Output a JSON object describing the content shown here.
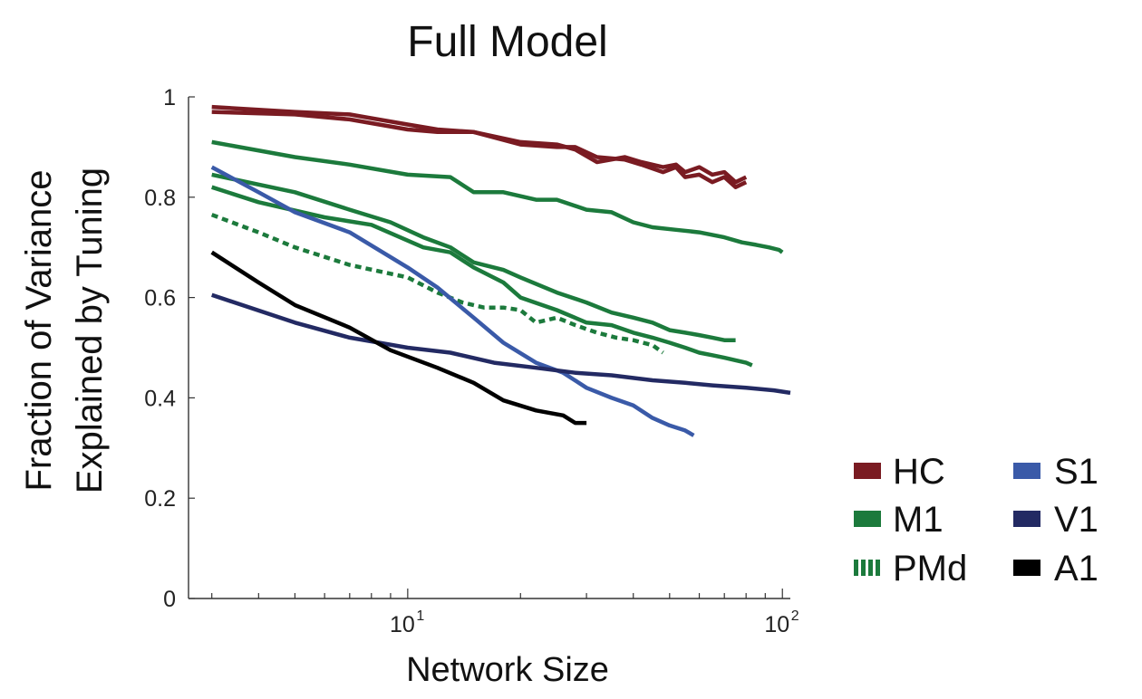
{
  "chart_data": {
    "type": "line",
    "title": "Full Model",
    "xlabel": "Network Size",
    "ylabel_lines": [
      "Fraction of Variance",
      "Explained by Tuning"
    ],
    "xscale": "log",
    "xlim": [
      2.6,
      105
    ],
    "ylim": [
      0,
      1
    ],
    "yticks": [
      0,
      0.2,
      0.4,
      0.6,
      0.8,
      1
    ],
    "ytick_labels": [
      "0",
      "0.2",
      "0.4",
      "0.6",
      "0.8",
      "1"
    ],
    "xticks": [
      10,
      100
    ],
    "xtick_labels": [
      {
        "base": "10",
        "exp": "1"
      },
      {
        "base": "10",
        "exp": "2"
      }
    ],
    "legend": [
      {
        "label": "HC",
        "color": "#7a1b22",
        "style": "solid"
      },
      {
        "label": "M1",
        "color": "#1c7a3c",
        "style": "solid"
      },
      {
        "label": "PMd",
        "color": "#1c7a3c",
        "style": "dashed"
      },
      {
        "label": "S1",
        "color": "#3a5aa8",
        "style": "solid"
      },
      {
        "label": "V1",
        "color": "#232a63",
        "style": "solid"
      },
      {
        "label": "A1",
        "color": "#000000",
        "style": "solid"
      }
    ],
    "series": [
      {
        "name": "HC",
        "color": "#7a1b22",
        "style": "solid",
        "x": [
          3,
          5,
          7,
          10,
          12,
          15,
          20,
          25,
          28,
          32,
          38,
          42,
          48,
          52,
          55,
          60,
          65,
          70,
          75,
          80
        ],
        "y": [
          0.98,
          0.97,
          0.965,
          0.945,
          0.935,
          0.93,
          0.91,
          0.905,
          0.895,
          0.87,
          0.88,
          0.87,
          0.86,
          0.865,
          0.85,
          0.86,
          0.845,
          0.85,
          0.83,
          0.84
        ]
      },
      {
        "name": "HC",
        "color": "#7a1b22",
        "style": "solid",
        "x": [
          3,
          5,
          7,
          10,
          12,
          15,
          20,
          25,
          28,
          32,
          38,
          42,
          48,
          52,
          55,
          60,
          65,
          70,
          75,
          80
        ],
        "y": [
          0.97,
          0.965,
          0.955,
          0.935,
          0.93,
          0.93,
          0.905,
          0.9,
          0.9,
          0.88,
          0.875,
          0.865,
          0.85,
          0.86,
          0.84,
          0.845,
          0.83,
          0.84,
          0.82,
          0.83
        ]
      },
      {
        "name": "M1",
        "color": "#1c7a3c",
        "style": "solid",
        "x": [
          3,
          5,
          7,
          10,
          13,
          15,
          18,
          22,
          25,
          30,
          35,
          40,
          45,
          52,
          60,
          70,
          78,
          85,
          92,
          98,
          100
        ],
        "y": [
          0.91,
          0.88,
          0.865,
          0.845,
          0.84,
          0.81,
          0.81,
          0.795,
          0.795,
          0.775,
          0.77,
          0.75,
          0.74,
          0.735,
          0.73,
          0.72,
          0.71,
          0.705,
          0.7,
          0.695,
          0.69
        ]
      },
      {
        "name": "M1",
        "color": "#1c7a3c",
        "style": "solid",
        "x": [
          3,
          5,
          7,
          9,
          11,
          13,
          15,
          18,
          20,
          25,
          30,
          35,
          40,
          45,
          50,
          55,
          60,
          65,
          70,
          75
        ],
        "y": [
          0.845,
          0.81,
          0.775,
          0.75,
          0.72,
          0.7,
          0.67,
          0.655,
          0.64,
          0.61,
          0.59,
          0.57,
          0.56,
          0.55,
          0.535,
          0.53,
          0.525,
          0.52,
          0.515,
          0.515
        ]
      },
      {
        "name": "M1",
        "color": "#1c7a3c",
        "style": "solid",
        "x": [
          3,
          4,
          6,
          8,
          11,
          13,
          15,
          18,
          20,
          25,
          30,
          35,
          40,
          45,
          50,
          55,
          60,
          65,
          70,
          75,
          80,
          83
        ],
        "y": [
          0.82,
          0.79,
          0.76,
          0.745,
          0.7,
          0.69,
          0.66,
          0.63,
          0.6,
          0.575,
          0.55,
          0.545,
          0.53,
          0.52,
          0.51,
          0.5,
          0.49,
          0.485,
          0.48,
          0.475,
          0.47,
          0.465
        ]
      },
      {
        "name": "PMd",
        "color": "#1c7a3c",
        "style": "dashed",
        "x": [
          3,
          4,
          5,
          7,
          10,
          12,
          14,
          16,
          18,
          20,
          22,
          25,
          28,
          32,
          36,
          40,
          45,
          48
        ],
        "y": [
          0.765,
          0.73,
          0.7,
          0.665,
          0.64,
          0.61,
          0.59,
          0.58,
          0.58,
          0.575,
          0.55,
          0.56,
          0.545,
          0.53,
          0.52,
          0.515,
          0.505,
          0.49
        ]
      },
      {
        "name": "S1",
        "color": "#3a5aa8",
        "style": "solid",
        "x": [
          3,
          4,
          5,
          7,
          10,
          12,
          15,
          18,
          22,
          26,
          30,
          35,
          40,
          45,
          50,
          55,
          58
        ],
        "y": [
          0.86,
          0.81,
          0.77,
          0.73,
          0.66,
          0.62,
          0.56,
          0.51,
          0.47,
          0.45,
          0.42,
          0.4,
          0.385,
          0.36,
          0.345,
          0.335,
          0.325
        ]
      },
      {
        "name": "V1",
        "color": "#232a63",
        "style": "solid",
        "x": [
          3,
          5,
          7,
          10,
          13,
          17,
          22,
          28,
          35,
          45,
          55,
          65,
          80,
          95,
          105
        ],
        "y": [
          0.605,
          0.55,
          0.52,
          0.5,
          0.49,
          0.47,
          0.46,
          0.45,
          0.445,
          0.435,
          0.43,
          0.425,
          0.42,
          0.415,
          0.41
        ]
      },
      {
        "name": "A1",
        "color": "#000000",
        "style": "solid",
        "x": [
          3,
          4,
          5,
          7,
          9,
          12,
          15,
          18,
          22,
          26,
          28,
          30
        ],
        "y": [
          0.69,
          0.63,
          0.585,
          0.54,
          0.495,
          0.46,
          0.43,
          0.395,
          0.375,
          0.365,
          0.35,
          0.35
        ]
      }
    ]
  }
}
